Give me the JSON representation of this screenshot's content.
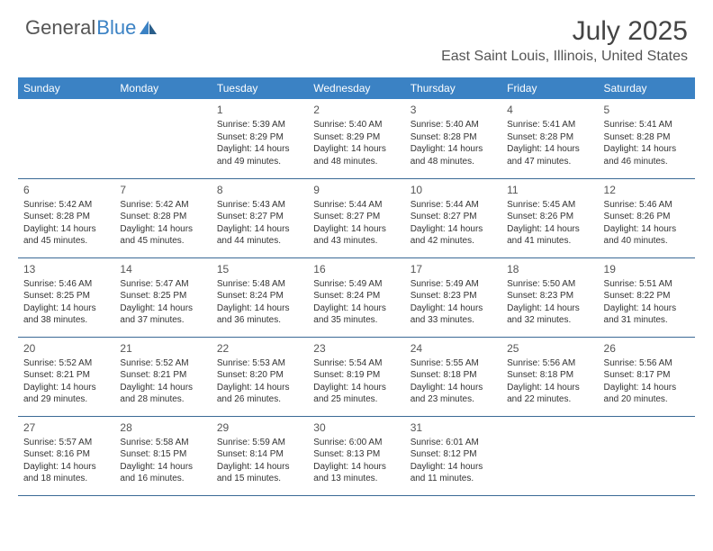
{
  "brand": {
    "first": "General",
    "second": "Blue",
    "accent_color": "#3b82c4"
  },
  "title": "July 2025",
  "location": "East Saint Louis, Illinois, United States",
  "colors": {
    "header_bg": "#3b82c4",
    "header_text": "#ffffff",
    "row_border": "#3b6a96",
    "body_text": "#333333",
    "title_text": "#444444"
  },
  "typography": {
    "title_fontsize": 30,
    "location_fontsize": 16,
    "dayheader_fontsize": 12,
    "daynum_fontsize": 12,
    "cell_fontsize": 10
  },
  "day_headers": [
    "Sunday",
    "Monday",
    "Tuesday",
    "Wednesday",
    "Thursday",
    "Friday",
    "Saturday"
  ],
  "weeks": [
    [
      null,
      null,
      {
        "n": "1",
        "sunrise": "5:39 AM",
        "sunset": "8:29 PM",
        "dl1": "Daylight: 14 hours",
        "dl2": "and 49 minutes."
      },
      {
        "n": "2",
        "sunrise": "5:40 AM",
        "sunset": "8:29 PM",
        "dl1": "Daylight: 14 hours",
        "dl2": "and 48 minutes."
      },
      {
        "n": "3",
        "sunrise": "5:40 AM",
        "sunset": "8:28 PM",
        "dl1": "Daylight: 14 hours",
        "dl2": "and 48 minutes."
      },
      {
        "n": "4",
        "sunrise": "5:41 AM",
        "sunset": "8:28 PM",
        "dl1": "Daylight: 14 hours",
        "dl2": "and 47 minutes."
      },
      {
        "n": "5",
        "sunrise": "5:41 AM",
        "sunset": "8:28 PM",
        "dl1": "Daylight: 14 hours",
        "dl2": "and 46 minutes."
      }
    ],
    [
      {
        "n": "6",
        "sunrise": "5:42 AM",
        "sunset": "8:28 PM",
        "dl1": "Daylight: 14 hours",
        "dl2": "and 45 minutes."
      },
      {
        "n": "7",
        "sunrise": "5:42 AM",
        "sunset": "8:28 PM",
        "dl1": "Daylight: 14 hours",
        "dl2": "and 45 minutes."
      },
      {
        "n": "8",
        "sunrise": "5:43 AM",
        "sunset": "8:27 PM",
        "dl1": "Daylight: 14 hours",
        "dl2": "and 44 minutes."
      },
      {
        "n": "9",
        "sunrise": "5:44 AM",
        "sunset": "8:27 PM",
        "dl1": "Daylight: 14 hours",
        "dl2": "and 43 minutes."
      },
      {
        "n": "10",
        "sunrise": "5:44 AM",
        "sunset": "8:27 PM",
        "dl1": "Daylight: 14 hours",
        "dl2": "and 42 minutes."
      },
      {
        "n": "11",
        "sunrise": "5:45 AM",
        "sunset": "8:26 PM",
        "dl1": "Daylight: 14 hours",
        "dl2": "and 41 minutes."
      },
      {
        "n": "12",
        "sunrise": "5:46 AM",
        "sunset": "8:26 PM",
        "dl1": "Daylight: 14 hours",
        "dl2": "and 40 minutes."
      }
    ],
    [
      {
        "n": "13",
        "sunrise": "5:46 AM",
        "sunset": "8:25 PM",
        "dl1": "Daylight: 14 hours",
        "dl2": "and 38 minutes."
      },
      {
        "n": "14",
        "sunrise": "5:47 AM",
        "sunset": "8:25 PM",
        "dl1": "Daylight: 14 hours",
        "dl2": "and 37 minutes."
      },
      {
        "n": "15",
        "sunrise": "5:48 AM",
        "sunset": "8:24 PM",
        "dl1": "Daylight: 14 hours",
        "dl2": "and 36 minutes."
      },
      {
        "n": "16",
        "sunrise": "5:49 AM",
        "sunset": "8:24 PM",
        "dl1": "Daylight: 14 hours",
        "dl2": "and 35 minutes."
      },
      {
        "n": "17",
        "sunrise": "5:49 AM",
        "sunset": "8:23 PM",
        "dl1": "Daylight: 14 hours",
        "dl2": "and 33 minutes."
      },
      {
        "n": "18",
        "sunrise": "5:50 AM",
        "sunset": "8:23 PM",
        "dl1": "Daylight: 14 hours",
        "dl2": "and 32 minutes."
      },
      {
        "n": "19",
        "sunrise": "5:51 AM",
        "sunset": "8:22 PM",
        "dl1": "Daylight: 14 hours",
        "dl2": "and 31 minutes."
      }
    ],
    [
      {
        "n": "20",
        "sunrise": "5:52 AM",
        "sunset": "8:21 PM",
        "dl1": "Daylight: 14 hours",
        "dl2": "and 29 minutes."
      },
      {
        "n": "21",
        "sunrise": "5:52 AM",
        "sunset": "8:21 PM",
        "dl1": "Daylight: 14 hours",
        "dl2": "and 28 minutes."
      },
      {
        "n": "22",
        "sunrise": "5:53 AM",
        "sunset": "8:20 PM",
        "dl1": "Daylight: 14 hours",
        "dl2": "and 26 minutes."
      },
      {
        "n": "23",
        "sunrise": "5:54 AM",
        "sunset": "8:19 PM",
        "dl1": "Daylight: 14 hours",
        "dl2": "and 25 minutes."
      },
      {
        "n": "24",
        "sunrise": "5:55 AM",
        "sunset": "8:18 PM",
        "dl1": "Daylight: 14 hours",
        "dl2": "and 23 minutes."
      },
      {
        "n": "25",
        "sunrise": "5:56 AM",
        "sunset": "8:18 PM",
        "dl1": "Daylight: 14 hours",
        "dl2": "and 22 minutes."
      },
      {
        "n": "26",
        "sunrise": "5:56 AM",
        "sunset": "8:17 PM",
        "dl1": "Daylight: 14 hours",
        "dl2": "and 20 minutes."
      }
    ],
    [
      {
        "n": "27",
        "sunrise": "5:57 AM",
        "sunset": "8:16 PM",
        "dl1": "Daylight: 14 hours",
        "dl2": "and 18 minutes."
      },
      {
        "n": "28",
        "sunrise": "5:58 AM",
        "sunset": "8:15 PM",
        "dl1": "Daylight: 14 hours",
        "dl2": "and 16 minutes."
      },
      {
        "n": "29",
        "sunrise": "5:59 AM",
        "sunset": "8:14 PM",
        "dl1": "Daylight: 14 hours",
        "dl2": "and 15 minutes."
      },
      {
        "n": "30",
        "sunrise": "6:00 AM",
        "sunset": "8:13 PM",
        "dl1": "Daylight: 14 hours",
        "dl2": "and 13 minutes."
      },
      {
        "n": "31",
        "sunrise": "6:01 AM",
        "sunset": "8:12 PM",
        "dl1": "Daylight: 14 hours",
        "dl2": "and 11 minutes."
      },
      null,
      null
    ]
  ],
  "labels": {
    "sunrise_prefix": "Sunrise: ",
    "sunset_prefix": "Sunset: "
  }
}
